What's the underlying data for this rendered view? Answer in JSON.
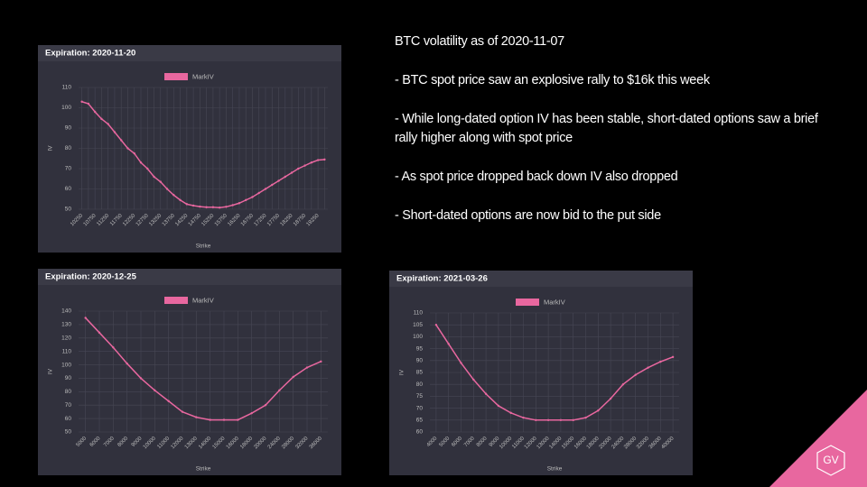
{
  "slide": {
    "title": "BTC volatility as of 2020-11-07",
    "bullets": [
      "- BTC spot price saw an explosive rally to $16k this week",
      "- While long-dated option IV has been stable, short-dated options saw a brief rally higher along with spot price",
      "- As spot price dropped back down IV also dropped",
      "- Short-dated options are now bid to the put side"
    ],
    "logo": "GV"
  },
  "chart_data": [
    {
      "type": "line",
      "title": "Expiration: 2020-11-20",
      "x_label": "Strike",
      "y_label": "IV",
      "categories": [
        "10250",
        null,
        "10750",
        null,
        "11250",
        null,
        "11750",
        null,
        "12250",
        null,
        "12750",
        null,
        "13250",
        null,
        "13750",
        null,
        "14250",
        null,
        "14750",
        null,
        "15250",
        null,
        "15750",
        null,
        "16250",
        null,
        "16750",
        null,
        "17250",
        null,
        "17750",
        null,
        "18250",
        null,
        "18750",
        null,
        "19250",
        null
      ],
      "series": [
        {
          "name": "MarkIV",
          "color": "#e8679f",
          "values": [
            103,
            102,
            98,
            94.5,
            92,
            88,
            84,
            80,
            77.5,
            73,
            70,
            66,
            63.5,
            60,
            57,
            54.5,
            52.5,
            51.8,
            51.3,
            51,
            51,
            50.8,
            51.2,
            52,
            53,
            54.5,
            56,
            58,
            60,
            62,
            64,
            66,
            68,
            70,
            71.5,
            73,
            74.2,
            74.5
          ]
        }
      ],
      "ylim": [
        50,
        110
      ],
      "yticks": [
        50,
        60,
        70,
        80,
        90,
        100,
        110
      ],
      "grid": true
    },
    {
      "type": "line",
      "title": "Expiration: 2020-12-25",
      "x_label": "Strike",
      "y_label": "IV",
      "categories": [
        "5000",
        "6000",
        "7000",
        "8000",
        "9000",
        "10000",
        "11000",
        "12000",
        "13000",
        "14000",
        "15000",
        "16000",
        "18000",
        "20000",
        "24000",
        "28000",
        "32000",
        "36000"
      ],
      "series": [
        {
          "name": "MarkIV",
          "color": "#e8679f",
          "values": [
            135,
            124,
            113,
            101,
            90,
            81,
            73,
            65,
            61,
            59,
            59,
            59,
            64,
            70,
            81,
            91,
            98,
            102.5
          ]
        }
      ],
      "ylim": [
        50,
        140
      ],
      "yticks": [
        50,
        60,
        70,
        80,
        90,
        100,
        110,
        120,
        130,
        140
      ],
      "grid": true
    },
    {
      "type": "line",
      "title": "Expiration: 2021-03-26",
      "x_label": "Strike",
      "y_label": "IV",
      "categories": [
        "4000",
        "5000",
        "6000",
        "7000",
        "8000",
        "9000",
        "10000",
        "11000",
        "12000",
        "13000",
        "14000",
        "15000",
        "16000",
        "18000",
        "20000",
        "24000",
        "28000",
        "32000",
        "36000",
        "40000"
      ],
      "series": [
        {
          "name": "MarkIV",
          "color": "#e8679f",
          "values": [
            105,
            97,
            89,
            82,
            76,
            71,
            68,
            66,
            65,
            65,
            65,
            65,
            66,
            69,
            74,
            80,
            84,
            87,
            89.5,
            91.5
          ]
        }
      ],
      "ylim": [
        60,
        110
      ],
      "yticks": [
        60,
        65,
        70,
        75,
        80,
        85,
        90,
        95,
        100,
        105,
        110
      ],
      "grid": true
    }
  ]
}
